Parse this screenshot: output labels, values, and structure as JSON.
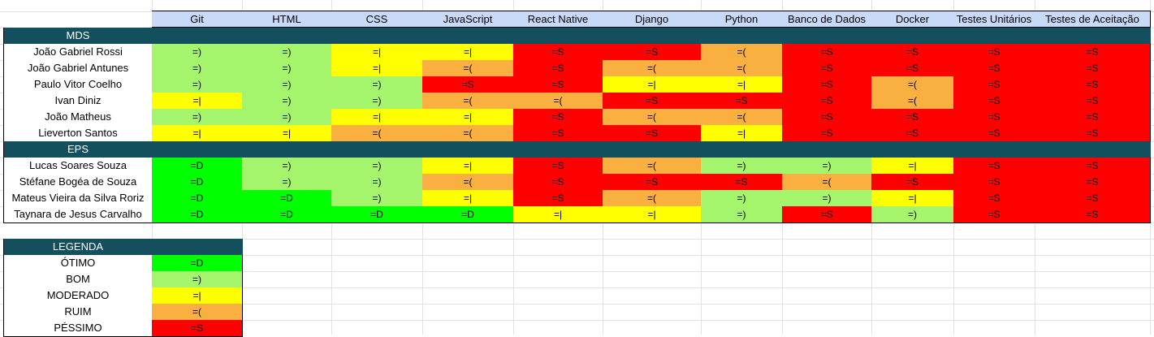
{
  "colors": {
    "header_bg": "#c9daf8",
    "section_bg": "#134f5c",
    "section_text": "#ffffff",
    "otimo": "#00ff00",
    "bom": "#a4f56b",
    "moderado": "#ffff00",
    "ruim": "#f9b040",
    "pessimo": "#ff0000"
  },
  "level_emoticons": {
    "otimo": "=D",
    "bom": "=)",
    "moderado": "=|",
    "ruim": "=(",
    "pessimo": "=S"
  },
  "columns": [
    "Git",
    "HTML",
    "CSS",
    "JavaScript",
    "React Native",
    "Django",
    "Python",
    "Banco de Dados",
    "Docker",
    "Testes Unitários",
    "Testes de Aceitação"
  ],
  "groups": [
    {
      "name": "MDS",
      "rows": [
        {
          "name": "João Gabriel Rossi",
          "levels": [
            "bom",
            "bom",
            "moderado",
            "moderado",
            "pessimo",
            "pessimo",
            "ruim",
            "pessimo",
            "pessimo",
            "pessimo",
            "pessimo"
          ]
        },
        {
          "name": "João Gabriel Antunes",
          "levels": [
            "bom",
            "bom",
            "moderado",
            "ruim",
            "pessimo",
            "ruim",
            "ruim",
            "pessimo",
            "pessimo",
            "pessimo",
            "pessimo"
          ]
        },
        {
          "name": "Paulo Vitor Coelho",
          "levels": [
            "bom",
            "bom",
            "bom",
            "pessimo",
            "pessimo",
            "moderado",
            "moderado",
            "pessimo",
            "ruim",
            "pessimo",
            "pessimo"
          ]
        },
        {
          "name": "Ivan Diniz",
          "levels": [
            "moderado",
            "bom",
            "bom",
            "ruim",
            "ruim",
            "pessimo",
            "pessimo",
            "pessimo",
            "ruim",
            "pessimo",
            "pessimo"
          ]
        },
        {
          "name": "João Matheus",
          "levels": [
            "bom",
            "bom",
            "moderado",
            "moderado",
            "pessimo",
            "ruim",
            "ruim",
            "pessimo",
            "pessimo",
            "pessimo",
            "pessimo"
          ]
        },
        {
          "name": "Lieverton Santos",
          "levels": [
            "moderado",
            "moderado",
            "ruim",
            "ruim",
            "pessimo",
            "pessimo",
            "moderado",
            "pessimo",
            "pessimo",
            "pessimo",
            "pessimo"
          ]
        }
      ]
    },
    {
      "name": "EPS",
      "rows": [
        {
          "name": "Lucas Soares Souza",
          "levels": [
            "otimo",
            "bom",
            "bom",
            "moderado",
            "pessimo",
            "ruim",
            "bom",
            "bom",
            "moderado",
            "pessimo",
            "pessimo"
          ]
        },
        {
          "name": "Stéfane Bogéa de Souza",
          "levels": [
            "otimo",
            "bom",
            "bom",
            "ruim",
            "pessimo",
            "pessimo",
            "pessimo",
            "ruim",
            "pessimo",
            "pessimo",
            "pessimo"
          ]
        },
        {
          "name": "Mateus Vieira da Silva Roriz",
          "levels": [
            "otimo",
            "otimo",
            "bom",
            "moderado",
            "pessimo",
            "ruim",
            "bom",
            "bom",
            "moderado",
            "pessimo",
            "pessimo"
          ]
        },
        {
          "name": "Taynara de Jesus Carvalho",
          "levels": [
            "otimo",
            "otimo",
            "otimo",
            "otimo",
            "moderado",
            "moderado",
            "bom",
            "pessimo",
            "bom",
            "pessimo",
            "pessimo"
          ]
        }
      ]
    }
  ],
  "legend": {
    "title": "LEGENDA",
    "items": [
      {
        "label": "ÓTIMO",
        "level": "otimo"
      },
      {
        "label": "BOM",
        "level": "bom"
      },
      {
        "label": "MODERADO",
        "level": "moderado"
      },
      {
        "label": "RUIM",
        "level": "ruim"
      },
      {
        "label": "PÉSSIMO",
        "level": "pessimo"
      }
    ]
  }
}
